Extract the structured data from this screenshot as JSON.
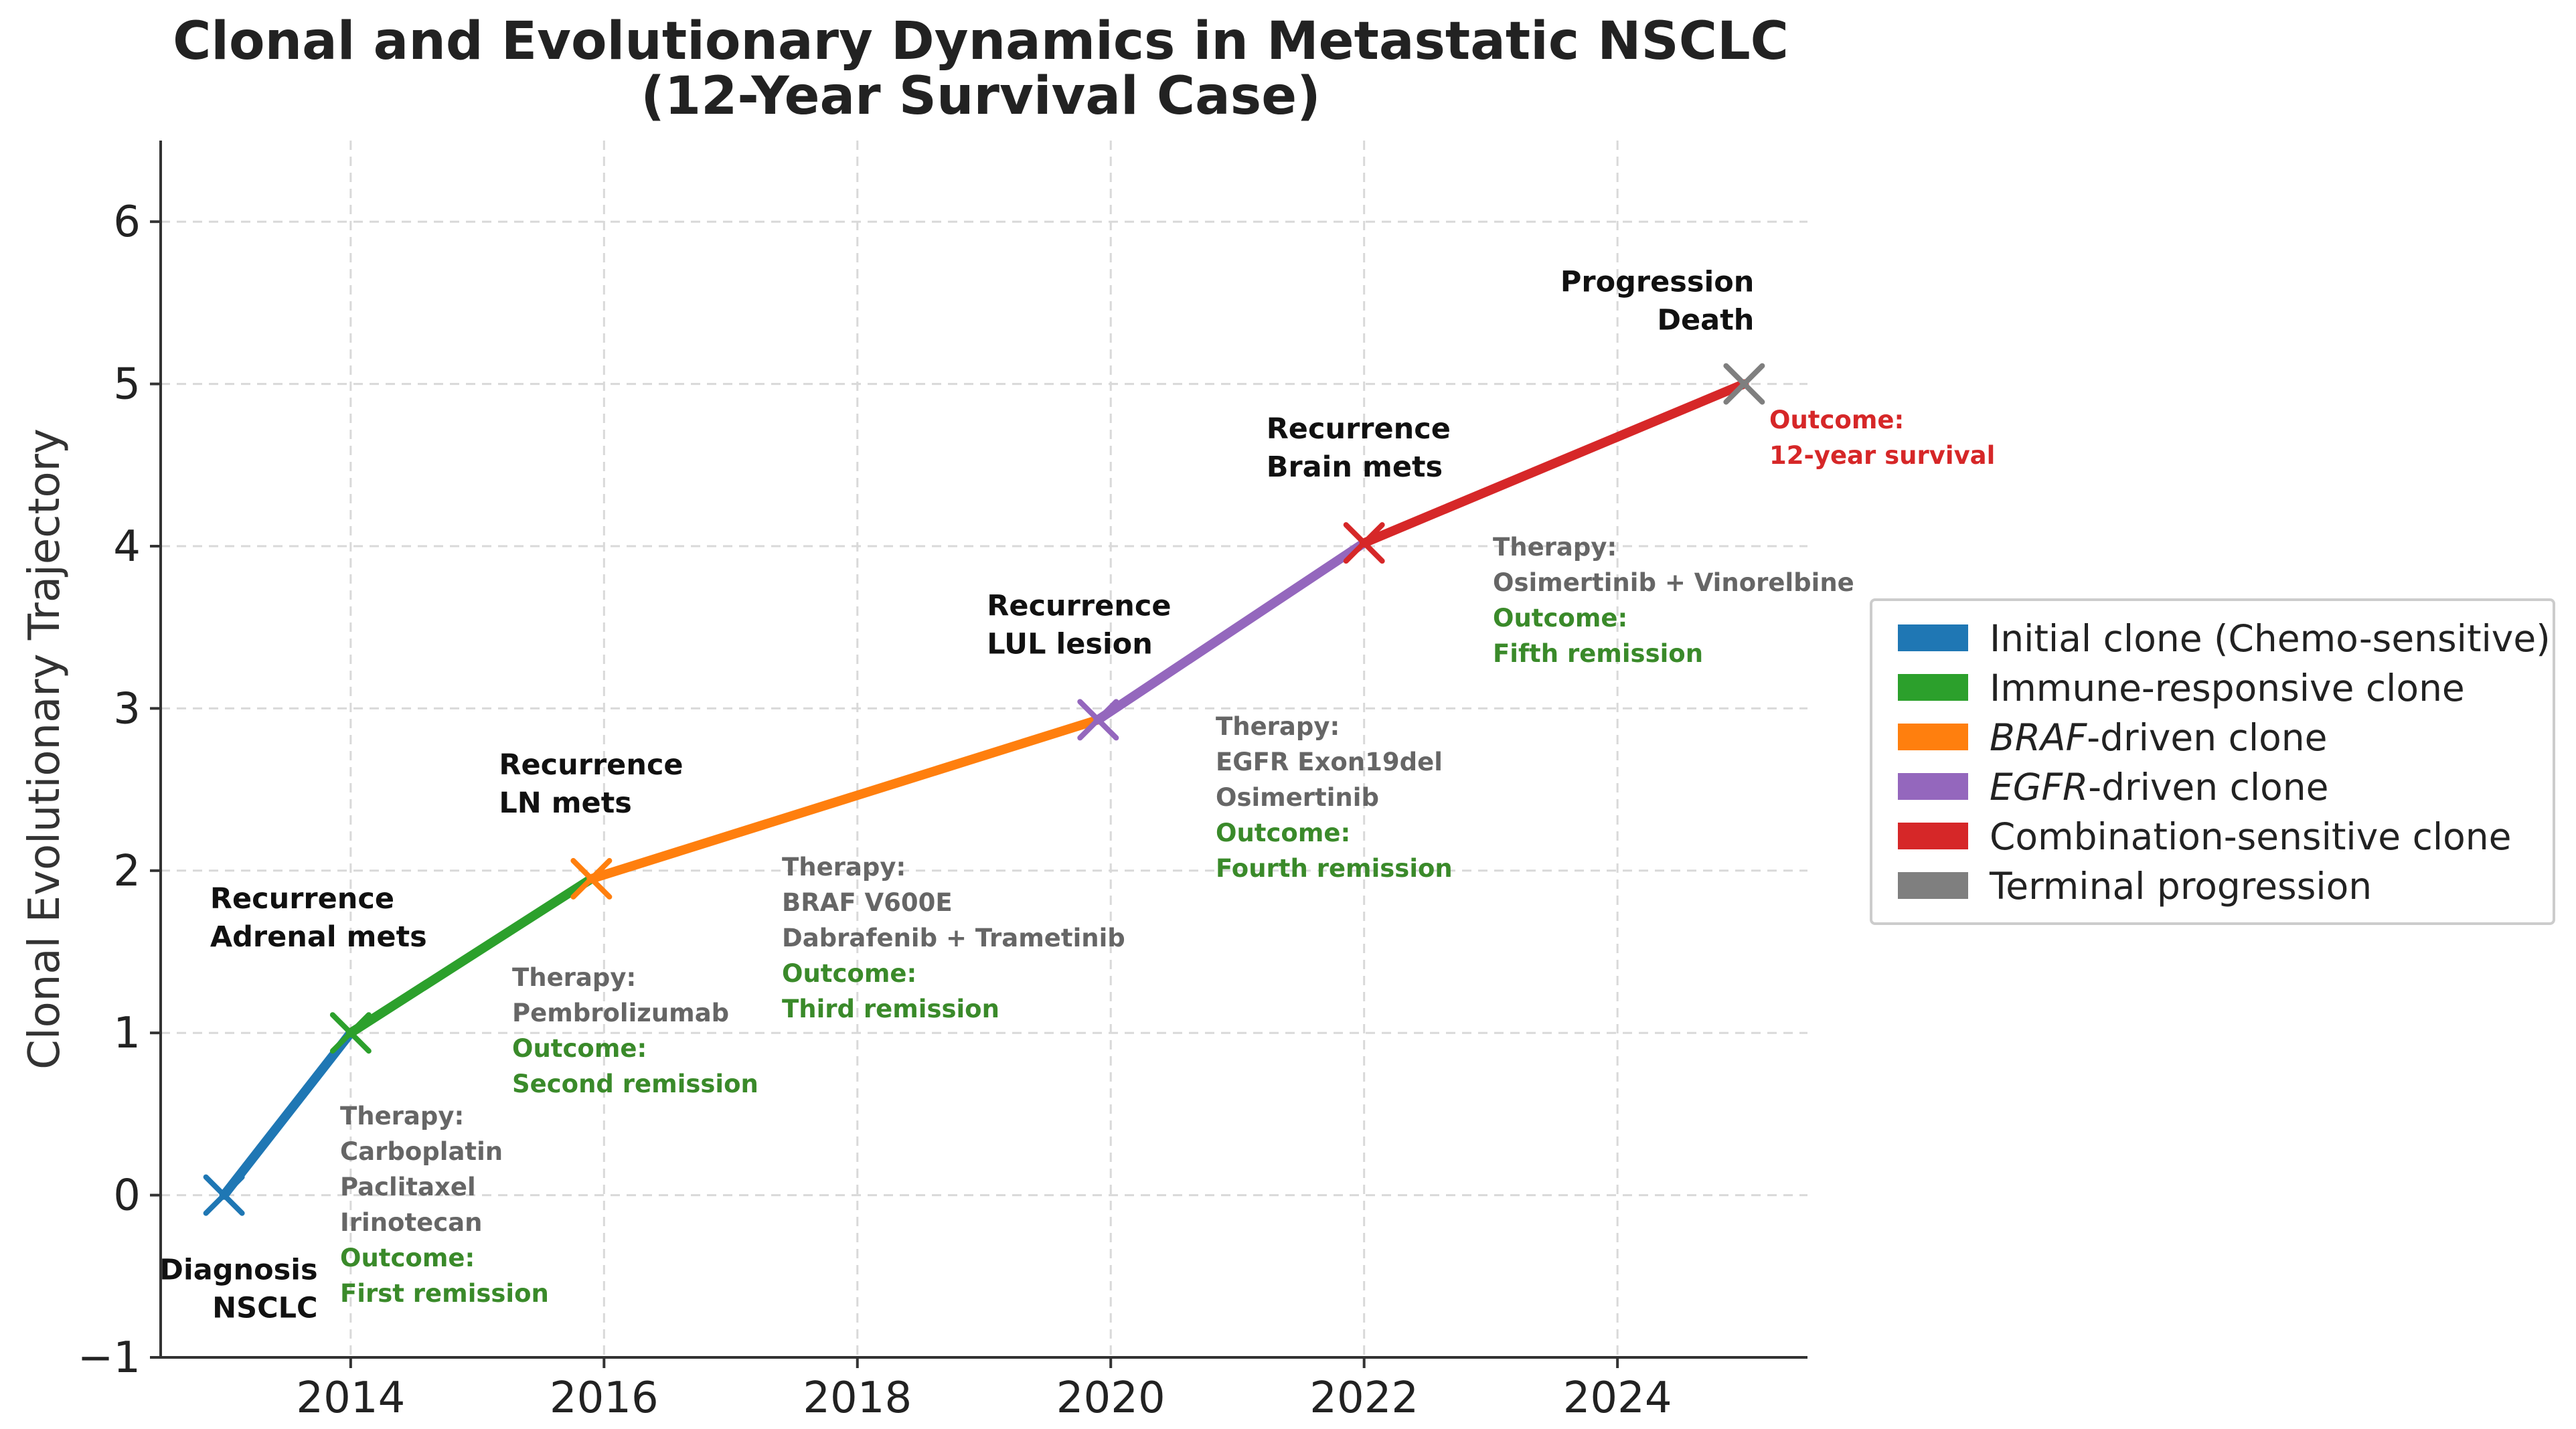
{
  "chart_data": {
    "type": "line",
    "title": [
      "Clonal and Evolutionary Dynamics in Metastatic NSCLC",
      "(12-Year Survival Case)"
    ],
    "xlabel": "",
    "ylabel": "Clonal Evolutionary Trajectory",
    "xlim": [
      2012.5,
      2025.5
    ],
    "ylim": [
      -1,
      6.5
    ],
    "x_ticks": [
      2014,
      2016,
      2018,
      2020,
      2022,
      2024
    ],
    "y_ticks": [
      -1,
      0,
      1,
      2,
      3,
      4,
      5,
      6
    ],
    "grid": true,
    "legend_position": "right",
    "points": [
      {
        "x": 2013.0,
        "y": 0,
        "color": "#1f77b4",
        "event": [
          "Diagnosis",
          "NSCLC"
        ]
      },
      {
        "x": 2014.0,
        "y": 1,
        "color": "#2ca02c",
        "event": [
          "Recurrence",
          "Adrenal mets"
        ]
      },
      {
        "x": 2015.9,
        "y": 1.95,
        "color": "#ff7f0e",
        "event": [
          "Recurrence",
          "LN mets"
        ]
      },
      {
        "x": 2019.9,
        "y": 2.93,
        "color": "#9467bd",
        "event": [
          "Recurrence",
          "LUL lesion"
        ]
      },
      {
        "x": 2022.0,
        "y": 4.02,
        "color": "#d62728",
        "event": [
          "Recurrence",
          "Brain mets"
        ]
      },
      {
        "x": 2025.0,
        "y": 5.0,
        "color": "#7f7f7f",
        "event": [
          "Progression",
          "Death"
        ]
      }
    ],
    "segments": [
      {
        "from": 0,
        "to": 1,
        "color": "#1f77b4"
      },
      {
        "from": 1,
        "to": 2,
        "color": "#2ca02c"
      },
      {
        "from": 2,
        "to": 3,
        "color": "#ff7f0e"
      },
      {
        "from": 3,
        "to": 4,
        "color": "#9467bd"
      },
      {
        "from": 4,
        "to": 5,
        "color": "#d62728"
      }
    ],
    "annotations": [
      {
        "header": "Therapy:",
        "lines": [
          "Carboplatin",
          "Paclitaxel",
          "Irinotecan"
        ],
        "outcome": [
          "Outcome:",
          "First remission"
        ],
        "outcome_color": "#3a8a2a"
      },
      {
        "header": "Therapy:",
        "lines": [
          "Pembrolizumab"
        ],
        "outcome": [
          "Outcome:",
          "Second remission"
        ],
        "outcome_color": "#3a8a2a"
      },
      {
        "header": "Therapy:",
        "lines": [
          "BRAF V600E",
          "Dabrafenib + Trametinib"
        ],
        "outcome": [
          "Outcome:",
          "Third remission"
        ],
        "outcome_color": "#3a8a2a"
      },
      {
        "header": "Therapy:",
        "lines": [
          "EGFR Exon19del",
          "Osimertinib"
        ],
        "outcome": [
          "Outcome:",
          "Fourth remission"
        ],
        "outcome_color": "#3a8a2a"
      },
      {
        "header": "Therapy:",
        "lines": [
          "Osimertinib + Vinorelbine"
        ],
        "outcome": [
          "Outcome:",
          "Fifth remission"
        ],
        "outcome_color": "#3a8a2a"
      },
      {
        "header": "",
        "lines": [],
        "outcome": [
          "Outcome:",
          "12-year survival"
        ],
        "outcome_color": "#d62728"
      }
    ],
    "legend": [
      {
        "prefix": "",
        "italic": "",
        "suffix": "Initial clone (Chemo-sensitive)",
        "color": "#1f77b4"
      },
      {
        "prefix": "",
        "italic": "",
        "suffix": "Immune-responsive clone",
        "color": "#2ca02c"
      },
      {
        "prefix": "",
        "italic": "BRAF",
        "suffix": "-driven clone",
        "color": "#ff7f0e"
      },
      {
        "prefix": "",
        "italic": "EGFR",
        "suffix": "-driven clone",
        "color": "#9467bd"
      },
      {
        "prefix": "",
        "italic": "",
        "suffix": "Combination-sensitive clone",
        "color": "#d62728"
      },
      {
        "prefix": "",
        "italic": "",
        "suffix": "Terminal progression",
        "color": "#7f7f7f"
      }
    ]
  }
}
